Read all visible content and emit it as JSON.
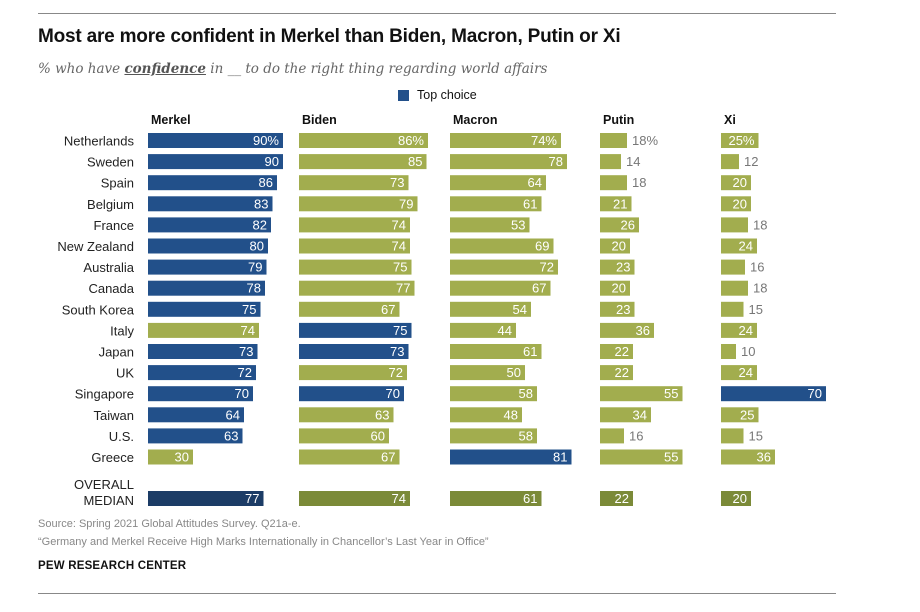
{
  "title": "Most are more confident in Merkel than Biden, Macron, Putin or Xi",
  "subtitle": {
    "before": "% who have ",
    "emphasis": "confidence",
    "after": " in __ to do the right thing regarding world affairs"
  },
  "legend": {
    "label": "Top choice"
  },
  "source": "Source: Spring 2021 Global Attitudes Survey. Q21a-e.",
  "report": "“Germany and Merkel Receive High Marks Internationally in Chancellor’s Last Year in Office”",
  "brand": "PEW RESEARCH CENTER",
  "colors": {
    "top_choice": "#22508a",
    "other": "#a2ad4e",
    "median_top": "#1c3c66",
    "median_other": "#7b8a38",
    "label_on_bar": "#ffffff",
    "label_outside": "#777777"
  },
  "chart_data": {
    "type": "bar",
    "orientation": "horizontal",
    "categories": [
      "Netherlands",
      "Sweden",
      "Spain",
      "Belgium",
      "France",
      "New Zealand",
      "Australia",
      "Canada",
      "South Korea",
      "Italy",
      "Japan",
      "UK",
      "Singapore",
      "Taiwan",
      "U.S.",
      "Greece"
    ],
    "median_label": [
      "OVERALL",
      "MEDIAN"
    ],
    "series": [
      {
        "name": "Merkel",
        "values": [
          90,
          90,
          86,
          83,
          82,
          80,
          79,
          78,
          75,
          74,
          73,
          72,
          70,
          64,
          63,
          30
        ],
        "median": 77,
        "top_choice": [
          true,
          true,
          true,
          true,
          true,
          true,
          true,
          true,
          true,
          false,
          true,
          true,
          true,
          true,
          true,
          false
        ],
        "median_top": true
      },
      {
        "name": "Biden",
        "values": [
          86,
          85,
          73,
          79,
          74,
          74,
          75,
          77,
          67,
          75,
          73,
          72,
          70,
          63,
          60,
          67
        ],
        "median": 74,
        "top_choice": [
          false,
          false,
          false,
          false,
          false,
          false,
          false,
          false,
          false,
          true,
          true,
          false,
          true,
          false,
          false,
          false
        ],
        "median_top": false
      },
      {
        "name": "Macron",
        "values": [
          74,
          78,
          64,
          61,
          53,
          69,
          72,
          67,
          54,
          44,
          61,
          50,
          58,
          48,
          58,
          81
        ],
        "median": 61,
        "top_choice": [
          false,
          false,
          false,
          false,
          false,
          false,
          false,
          false,
          false,
          false,
          false,
          false,
          false,
          false,
          false,
          true
        ],
        "median_top": false
      },
      {
        "name": "Putin",
        "values": [
          18,
          14,
          18,
          21,
          26,
          20,
          23,
          20,
          23,
          36,
          22,
          22,
          55,
          34,
          16,
          55
        ],
        "median": 22,
        "top_choice": [
          false,
          false,
          false,
          false,
          false,
          false,
          false,
          false,
          false,
          false,
          false,
          false,
          false,
          false,
          false,
          false
        ],
        "median_top": false
      },
      {
        "name": "Xi",
        "values": [
          25,
          12,
          20,
          20,
          18,
          24,
          16,
          18,
          15,
          24,
          10,
          24,
          70,
          25,
          15,
          36
        ],
        "median": 20,
        "top_choice": [
          false,
          false,
          false,
          false,
          false,
          false,
          false,
          false,
          false,
          false,
          false,
          false,
          true,
          false,
          false,
          false
        ],
        "median_top": false
      }
    ],
    "value_suffix_first_row": "%"
  }
}
